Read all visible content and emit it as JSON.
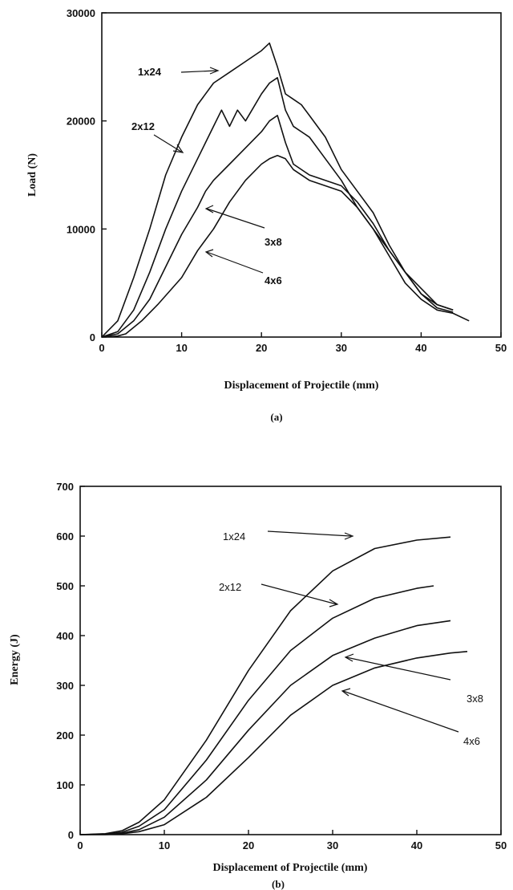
{
  "chart_data": [
    {
      "type": "line",
      "panel_label": "(a)",
      "xlabel": "Displacement of Projectile (mm)",
      "ylabel": "Load (N)",
      "xlim": [
        0,
        50
      ],
      "ylim": [
        0,
        30000
      ],
      "xticks": [
        0,
        10,
        20,
        30,
        40,
        50
      ],
      "yticks": [
        0,
        10000,
        20000,
        30000
      ],
      "series": [
        {
          "name": "1x24",
          "x": [
            0,
            2,
            4,
            6,
            8,
            10,
            12,
            14,
            16,
            18,
            20,
            21,
            22,
            23,
            24,
            25,
            26,
            28,
            30,
            32,
            34,
            36,
            38,
            40,
            42,
            44
          ],
          "y": [
            0,
            1500,
            5500,
            10000,
            15000,
            18500,
            21500,
            23500,
            24500,
            25500,
            26500,
            27200,
            25000,
            22500,
            22000,
            21500,
            20500,
            18500,
            15500,
            13500,
            11500,
            8500,
            6000,
            4000,
            2700,
            2300
          ]
        },
        {
          "name": "2x12",
          "x": [
            0,
            2,
            4,
            6,
            8,
            10,
            12,
            14,
            15,
            16,
            17,
            18,
            20,
            21,
            22,
            23,
            24,
            26,
            28,
            30,
            32,
            34,
            36,
            38,
            40,
            42,
            44
          ],
          "y": [
            0,
            500,
            2500,
            6000,
            10000,
            13500,
            16500,
            19500,
            21000,
            19500,
            21000,
            20000,
            22500,
            23500,
            24000,
            21000,
            19500,
            18500,
            16500,
            14500,
            12000,
            10000,
            8000,
            6000,
            4000,
            3000,
            2500
          ]
        },
        {
          "name": "3x8",
          "x": [
            0,
            2,
            4,
            6,
            8,
            10,
            12,
            13,
            14,
            16,
            18,
            20,
            21,
            22,
            23,
            24,
            26,
            28,
            30,
            32,
            34,
            36,
            38,
            40,
            42,
            44
          ],
          "y": [
            0,
            300,
            1500,
            3500,
            6500,
            9500,
            12000,
            13500,
            14500,
            16000,
            17500,
            19000,
            20000,
            20500,
            18000,
            16000,
            15000,
            14500,
            14000,
            12500,
            10500,
            8000,
            6000,
            4500,
            3000,
            2500
          ]
        },
        {
          "name": "4x6",
          "x": [
            0,
            2,
            3,
            5,
            7,
            10,
            12,
            14,
            16,
            18,
            20,
            21,
            22,
            23,
            24,
            26,
            28,
            30,
            32,
            34,
            36,
            38,
            40,
            42,
            44,
            46
          ],
          "y": [
            0,
            100,
            300,
            1500,
            3000,
            5500,
            8000,
            10000,
            12500,
            14500,
            16000,
            16500,
            16800,
            16500,
            15500,
            14500,
            14000,
            13500,
            12000,
            10000,
            7500,
            5000,
            3500,
            2500,
            2200,
            1500
          ]
        }
      ],
      "annotations": [
        "1x24",
        "2x12",
        "3x8",
        "4x6"
      ]
    },
    {
      "type": "line",
      "panel_label": "(b)",
      "xlabel": "Displacement of Projectile (mm)",
      "ylabel": "Energy (J)",
      "xlim": [
        0,
        50
      ],
      "ylim": [
        0,
        700
      ],
      "xticks": [
        0,
        10,
        20,
        30,
        40,
        50
      ],
      "yticks": [
        0,
        100,
        200,
        300,
        400,
        500,
        600,
        700
      ],
      "series": [
        {
          "name": "1x24",
          "x": [
            0,
            3,
            5,
            7,
            10,
            15,
            20,
            25,
            30,
            35,
            40,
            44
          ],
          "y": [
            0,
            2,
            8,
            25,
            70,
            190,
            330,
            450,
            530,
            575,
            592,
            598
          ]
        },
        {
          "name": "2x12",
          "x": [
            0,
            3,
            5,
            7,
            10,
            15,
            20,
            25,
            30,
            35,
            40,
            42
          ],
          "y": [
            0,
            1,
            5,
            17,
            50,
            150,
            270,
            370,
            435,
            475,
            495,
            500
          ]
        },
        {
          "name": "3x8",
          "x": [
            0,
            3,
            5,
            7,
            10,
            15,
            20,
            25,
            30,
            35,
            40,
            44
          ],
          "y": [
            0,
            1,
            3,
            10,
            35,
            110,
            210,
            300,
            360,
            395,
            420,
            430
          ]
        },
        {
          "name": "4x6",
          "x": [
            0,
            3,
            5,
            7,
            10,
            15,
            20,
            25,
            30,
            35,
            40,
            44,
            46
          ],
          "y": [
            0,
            0,
            2,
            6,
            20,
            75,
            155,
            240,
            300,
            335,
            355,
            365,
            368
          ]
        }
      ],
      "annotations": [
        "1x24",
        "2x12",
        "3x8",
        "4x6"
      ]
    }
  ]
}
